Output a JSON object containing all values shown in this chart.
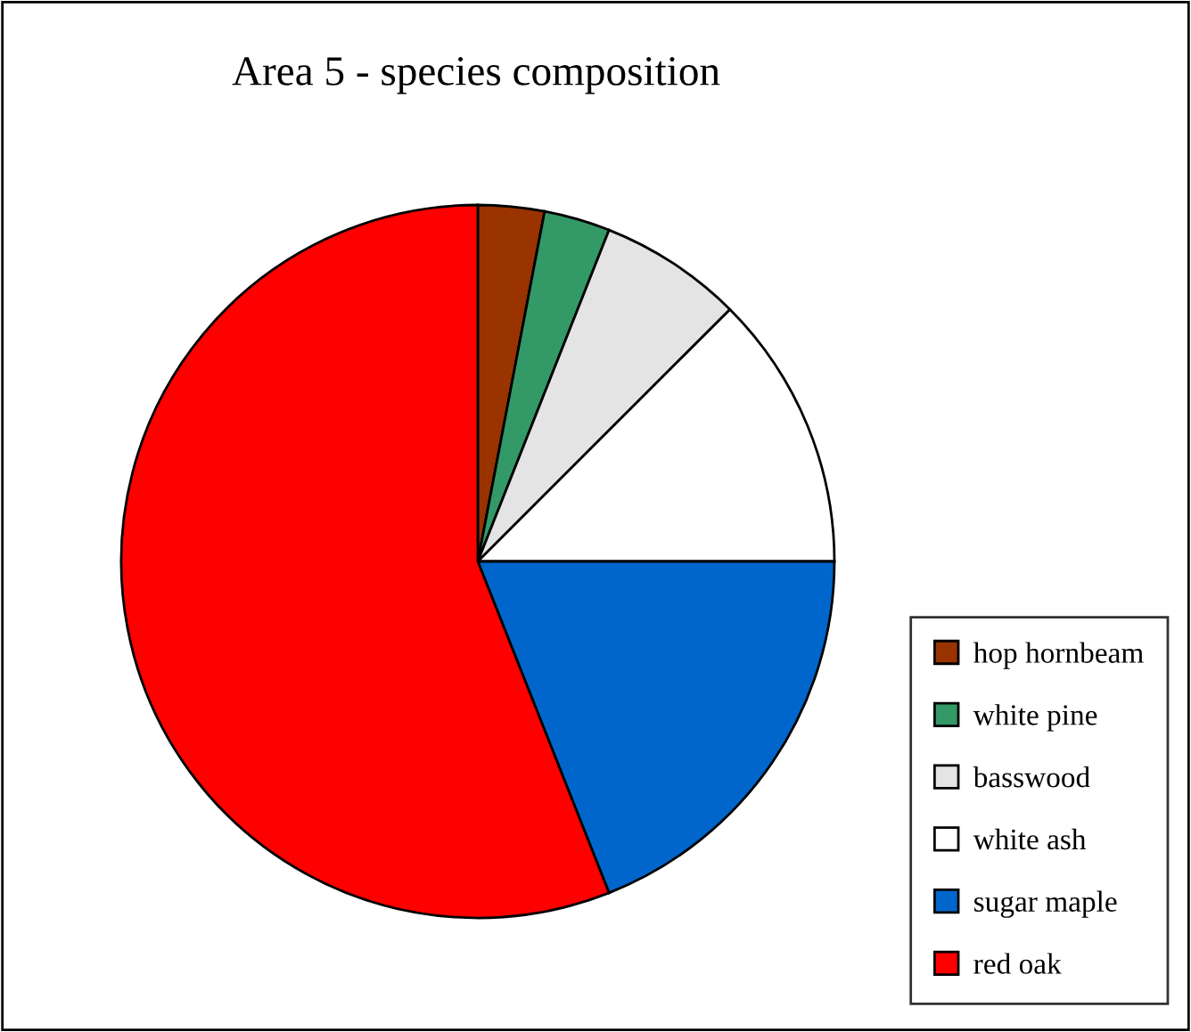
{
  "chart_data": {
    "type": "pie",
    "title": "Area 5 - species composition",
    "categories": [
      "hop hornbeam",
      "white pine",
      "basswood",
      "white ash",
      "sugar maple",
      "red oak"
    ],
    "values": [
      3,
      3,
      6.5,
      12.5,
      19,
      56
    ],
    "colors": [
      "#993300",
      "#339966",
      "#e4e4e4",
      "#ffffff",
      "#0066cc",
      "#ff0000"
    ],
    "legend": "bottom right"
  }
}
